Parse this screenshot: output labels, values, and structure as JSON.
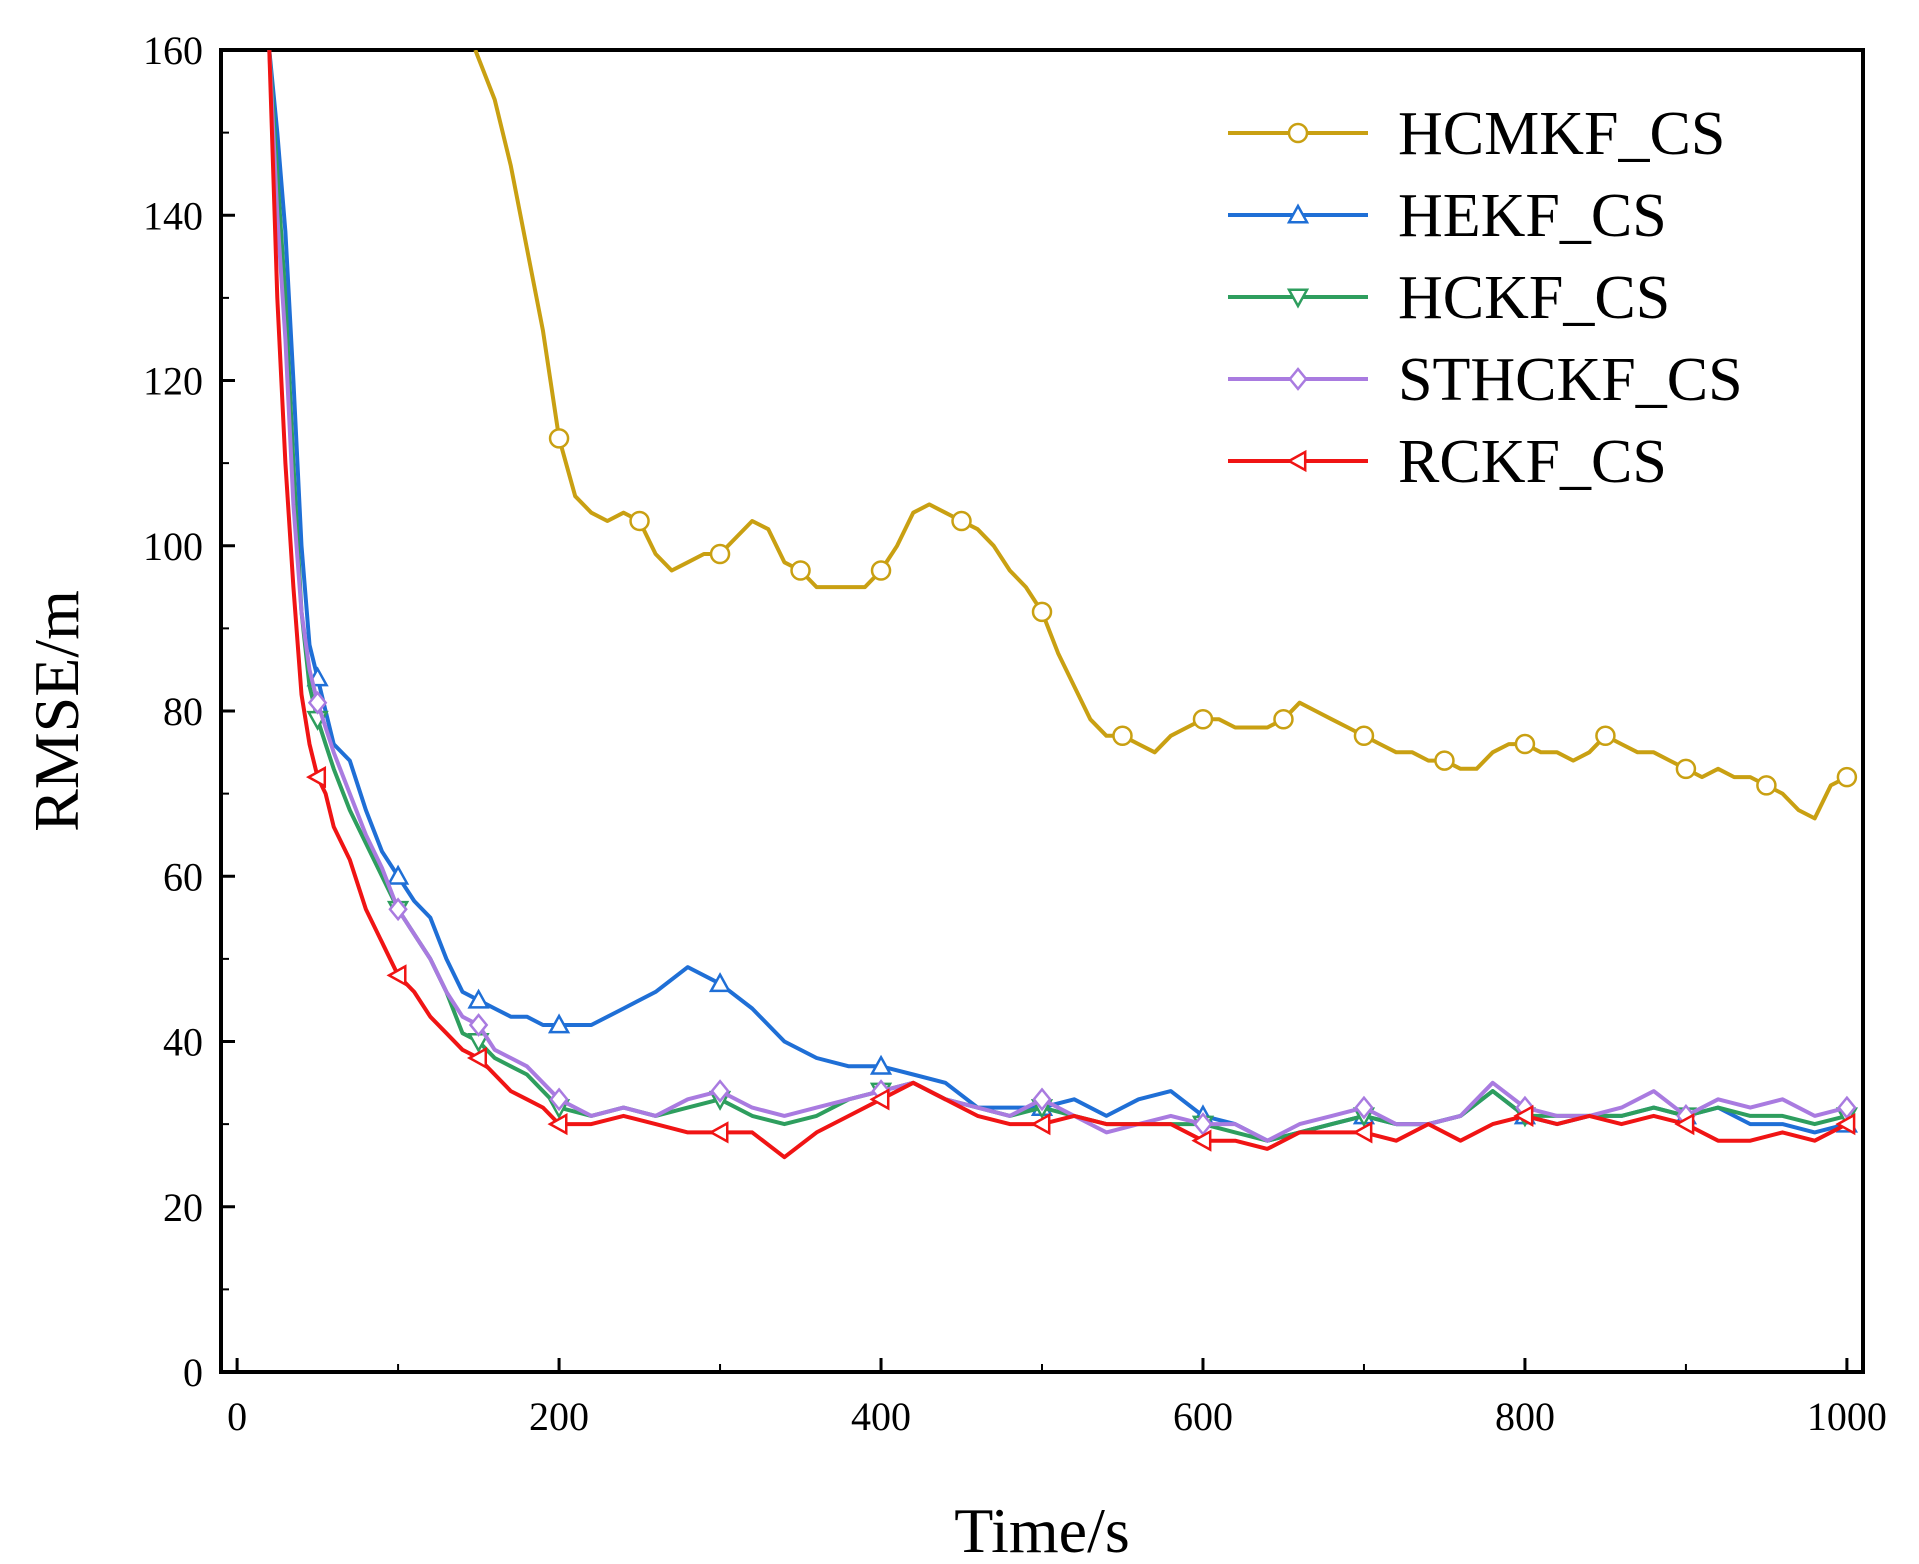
{
  "chart_data": {
    "type": "line",
    "title": "",
    "xlabel": "Time/s",
    "ylabel": "RMSE/m",
    "xlim": [
      -10,
      1010
    ],
    "ylim": [
      0,
      160
    ],
    "xticks": [
      0,
      200,
      400,
      600,
      800,
      1000
    ],
    "yticks": [
      0,
      20,
      40,
      60,
      80,
      100,
      120,
      140,
      160
    ],
    "grid": false,
    "legend_position": "top-right",
    "series": [
      {
        "name": "HCMKF_CS",
        "color": "#C9A012",
        "marker": "circle",
        "x": [
          148,
          160,
          170,
          180,
          190,
          200,
          210,
          220,
          230,
          240,
          250,
          260,
          270,
          280,
          290,
          300,
          310,
          320,
          330,
          340,
          350,
          360,
          370,
          380,
          390,
          400,
          410,
          420,
          430,
          440,
          450,
          460,
          470,
          480,
          490,
          500,
          510,
          520,
          530,
          540,
          550,
          560,
          570,
          580,
          590,
          600,
          610,
          620,
          630,
          640,
          650,
          660,
          670,
          680,
          690,
          700,
          710,
          720,
          730,
          740,
          750,
          760,
          770,
          780,
          790,
          800,
          810,
          820,
          830,
          840,
          850,
          860,
          870,
          880,
          890,
          900,
          910,
          920,
          930,
          940,
          950,
          960,
          970,
          980,
          990,
          1000
        ],
        "values": [
          160,
          154,
          146,
          136,
          126,
          113,
          106,
          104,
          103,
          104,
          103,
          99,
          97,
          98,
          99,
          99,
          101,
          103,
          102,
          98,
          97,
          95,
          95,
          95,
          95,
          97,
          100,
          104,
          105,
          104,
          103,
          102,
          100,
          97,
          95,
          92,
          87,
          83,
          79,
          77,
          77,
          76,
          75,
          77,
          78,
          79,
          79,
          78,
          78,
          78,
          79,
          81,
          80,
          79,
          78,
          77,
          76,
          75,
          75,
          74,
          74,
          73,
          73,
          75,
          76,
          76,
          75,
          75,
          74,
          75,
          77,
          76,
          75,
          75,
          74,
          73,
          72,
          73,
          72,
          72,
          71,
          70,
          68,
          67,
          71,
          72
        ]
      },
      {
        "name": "HEKF_CS",
        "color": "#1F6FD6",
        "marker": "triangle-up",
        "x": [
          20,
          25,
          30,
          35,
          40,
          45,
          50,
          55,
          60,
          70,
          80,
          90,
          100,
          110,
          120,
          130,
          140,
          150,
          160,
          170,
          180,
          190,
          200,
          220,
          240,
          260,
          280,
          300,
          320,
          340,
          360,
          380,
          400,
          420,
          440,
          460,
          480,
          500,
          520,
          540,
          560,
          580,
          600,
          620,
          640,
          660,
          680,
          700,
          720,
          740,
          760,
          780,
          800,
          820,
          840,
          860,
          880,
          900,
          920,
          940,
          960,
          980,
          1000
        ],
        "values": [
          160,
          150,
          138,
          120,
          100,
          88,
          84,
          80,
          76,
          74,
          68,
          63,
          60,
          57,
          55,
          50,
          46,
          45,
          44,
          43,
          43,
          42,
          42,
          42,
          44,
          46,
          49,
          47,
          44,
          40,
          38,
          37,
          37,
          36,
          35,
          32,
          32,
          32,
          33,
          31,
          33,
          34,
          31,
          30,
          28,
          29,
          30,
          31,
          30,
          30,
          31,
          34,
          31,
          30,
          31,
          31,
          32,
          31,
          32,
          30,
          30,
          29,
          30
        ]
      },
      {
        "name": "HCKF_CS",
        "color": "#2E9E5E",
        "marker": "triangle-down",
        "x": [
          20,
          25,
          30,
          35,
          40,
          45,
          50,
          55,
          60,
          70,
          80,
          90,
          100,
          110,
          120,
          130,
          140,
          150,
          160,
          170,
          180,
          190,
          200,
          220,
          240,
          260,
          280,
          300,
          320,
          340,
          360,
          380,
          400,
          420,
          440,
          460,
          480,
          500,
          520,
          540,
          560,
          580,
          600,
          620,
          640,
          660,
          680,
          700,
          720,
          740,
          760,
          780,
          800,
          820,
          840,
          860,
          880,
          900,
          920,
          940,
          960,
          980,
          1000
        ],
        "values": [
          160,
          145,
          130,
          110,
          92,
          83,
          79,
          76,
          73,
          68,
          64,
          60,
          56,
          53,
          50,
          46,
          41,
          40,
          38,
          37,
          36,
          34,
          32,
          31,
          32,
          31,
          32,
          33,
          31,
          30,
          31,
          33,
          34,
          35,
          33,
          32,
          31,
          32,
          31,
          30,
          30,
          30,
          30,
          29,
          28,
          29,
          30,
          31,
          30,
          30,
          31,
          34,
          31,
          31,
          31,
          31,
          32,
          31,
          32,
          31,
          31,
          30,
          31
        ]
      },
      {
        "name": "STHCKF_CS",
        "color": "#A97BE0",
        "marker": "diamond",
        "x": [
          20,
          25,
          30,
          35,
          40,
          45,
          50,
          55,
          60,
          70,
          80,
          90,
          100,
          110,
          120,
          130,
          140,
          150,
          160,
          170,
          180,
          190,
          200,
          220,
          240,
          260,
          280,
          300,
          320,
          340,
          360,
          380,
          400,
          420,
          440,
          460,
          480,
          500,
          520,
          540,
          560,
          580,
          600,
          620,
          640,
          660,
          680,
          700,
          720,
          740,
          760,
          780,
          800,
          820,
          840,
          860,
          880,
          900,
          920,
          940,
          960,
          980,
          1000
        ],
        "values": [
          160,
          140,
          125,
          105,
          92,
          85,
          81,
          78,
          75,
          70,
          65,
          61,
          56,
          53,
          50,
          46,
          43,
          42,
          39,
          38,
          37,
          35,
          33,
          31,
          32,
          31,
          33,
          34,
          32,
          31,
          32,
          33,
          34,
          35,
          33,
          32,
          31,
          33,
          31,
          29,
          30,
          31,
          30,
          30,
          28,
          30,
          31,
          32,
          30,
          30,
          31,
          35,
          32,
          31,
          31,
          32,
          34,
          31,
          33,
          32,
          33,
          31,
          32
        ]
      },
      {
        "name": "RCKF_CS",
        "color": "#F01414",
        "marker": "triangle-left",
        "x": [
          20,
          25,
          30,
          35,
          40,
          45,
          50,
          55,
          60,
          70,
          80,
          90,
          100,
          110,
          120,
          130,
          140,
          150,
          160,
          170,
          180,
          190,
          200,
          220,
          240,
          260,
          280,
          300,
          320,
          340,
          360,
          380,
          400,
          420,
          440,
          460,
          480,
          500,
          520,
          540,
          560,
          580,
          600,
          620,
          640,
          660,
          680,
          700,
          720,
          740,
          760,
          780,
          800,
          820,
          840,
          860,
          880,
          900,
          920,
          940,
          960,
          980,
          1000
        ],
        "values": [
          160,
          130,
          110,
          95,
          82,
          76,
          72,
          70,
          66,
          62,
          56,
          52,
          48,
          46,
          43,
          41,
          39,
          38,
          36,
          34,
          33,
          32,
          30,
          30,
          31,
          30,
          29,
          29,
          29,
          26,
          29,
          31,
          33,
          35,
          33,
          31,
          30,
          30,
          31,
          30,
          30,
          30,
          28,
          28,
          27,
          29,
          29,
          29,
          28,
          30,
          28,
          30,
          31,
          30,
          31,
          30,
          31,
          30,
          28,
          28,
          29,
          28,
          30
        ]
      }
    ]
  }
}
